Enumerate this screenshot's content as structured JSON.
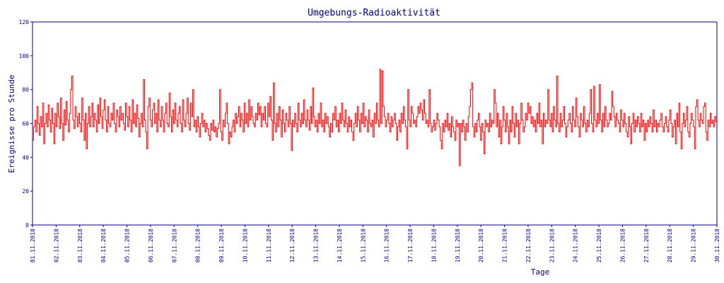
{
  "chart_data": {
    "type": "line",
    "title": "Umgebungs-Radioaktivität",
    "xlabel": "Tage",
    "ylabel": "Ereignisse pro Stunde",
    "ylim": [
      0,
      120
    ],
    "yticks": [
      0,
      20,
      40,
      60,
      80,
      100,
      120
    ],
    "xticks": [
      "01.11.2018",
      "02.11.2018",
      "03.11.2018",
      "04.11.2018",
      "05.11.2018",
      "06.11.2018",
      "07.11.2018",
      "08.11.2018",
      "09.11.2018",
      "10.11.2018",
      "11.11.2018",
      "12.11.2018",
      "13.11.2018",
      "14.11.2018",
      "15.11.2018",
      "16.11.2018",
      "17.11.2018",
      "18.11.2018",
      "19.11.2018",
      "20.11.2018",
      "21.11.2018",
      "22.11.2018",
      "23.11.2018",
      "24.11.2018",
      "25.11.2018",
      "26.11.2018",
      "27.11.2018",
      "28.11.2018",
      "29.11.2018",
      "30.11.2018"
    ],
    "grid": false,
    "line_color": "#ff0000",
    "axis_color": "#000080",
    "series": [
      {
        "sampling": "hourly",
        "values": [
          50,
          58,
          62,
          55,
          70,
          60,
          53,
          64,
          58,
          72,
          48,
          60,
          66,
          58,
          71,
          62,
          55,
          69,
          60,
          48,
          66,
          58,
          72,
          64,
          57,
          75,
          60,
          50,
          68,
          59,
          73,
          62,
          55,
          66,
          80,
          88,
          62,
          57,
          70,
          64,
          58,
          66,
          60,
          55,
          75,
          62,
          50,
          66,
          45,
          60,
          70,
          58,
          64,
          72,
          58,
          66,
          62,
          55,
          71,
          60,
          75,
          64,
          57,
          68,
          74,
          62,
          55,
          70,
          60,
          58,
          66,
          62,
          72,
          60,
          55,
          68,
          64,
          58,
          70,
          62,
          66,
          60,
          56,
          72,
          64,
          58,
          70,
          62,
          55,
          74,
          60,
          66,
          58,
          71,
          63,
          52,
          60,
          66,
          58,
          86,
          62,
          55,
          45,
          70,
          75,
          62,
          58,
          68,
          72,
          60,
          66,
          55,
          74,
          62,
          58,
          70,
          62,
          55,
          66,
          72,
          60,
          58,
          78,
          64,
          55,
          68,
          60,
          72,
          62,
          58,
          66,
          70,
          60,
          55,
          74,
          62,
          58,
          66,
          75,
          60,
          56,
          72,
          64,
          80,
          58,
          62,
          55,
          64,
          58,
          52,
          60,
          66,
          58,
          62,
          55,
          60,
          57,
          53,
          50,
          60,
          56,
          62,
          55,
          58,
          52,
          57,
          60,
          80,
          55,
          50,
          62,
          58,
          66,
          72,
          60,
          48,
          55,
          52,
          58,
          62,
          55,
          66,
          60,
          64,
          70,
          58,
          66,
          62,
          55,
          72,
          60,
          66,
          58,
          74,
          62,
          70,
          64,
          60,
          58,
          66,
          62,
          72,
          65,
          70,
          58,
          66,
          62,
          70,
          60,
          58,
          72,
          64,
          76,
          62,
          50,
          84,
          60,
          55,
          66,
          58,
          70,
          62,
          52,
          68,
          60,
          55,
          66,
          62,
          58,
          70,
          60,
          44,
          62,
          58,
          66,
          60,
          55,
          72,
          62,
          58,
          66,
          60,
          74,
          62,
          58,
          68,
          62,
          56,
          70,
          60,
          81,
          64,
          58,
          62,
          55,
          66,
          60,
          72,
          58,
          62,
          55,
          66,
          60,
          64,
          58,
          52,
          60,
          55,
          66,
          62,
          70,
          58,
          62,
          55,
          66,
          60,
          72,
          62,
          58,
          68,
          60,
          55,
          64,
          58,
          62,
          55,
          50,
          60,
          66,
          58,
          70,
          62,
          55,
          66,
          60,
          72,
          58,
          64,
          62,
          55,
          68,
          60,
          58,
          62,
          52,
          66,
          60,
          72,
          62,
          58,
          92,
          60,
          91,
          70,
          64,
          58,
          62,
          66,
          60,
          55,
          64,
          58,
          62,
          66,
          60,
          50,
          58,
          62,
          55,
          66,
          60,
          70,
          62,
          58,
          45,
          80,
          62,
          58,
          70,
          66,
          60,
          62,
          58,
          64,
          70,
          66,
          72,
          68,
          62,
          74,
          66,
          60,
          62,
          58,
          80,
          60,
          55,
          58,
          62,
          56,
          60,
          66,
          62,
          58,
          50,
          45,
          60,
          55,
          62,
          58,
          66,
          56,
          60,
          52,
          64,
          58,
          55,
          50,
          62,
          58,
          60,
          35,
          60,
          55,
          62,
          58,
          50,
          60,
          55,
          64,
          70,
          80,
          84,
          58,
          52,
          60,
          55,
          62,
          66,
          58,
          50,
          60,
          55,
          42,
          62,
          58,
          60,
          55,
          66,
          58,
          62,
          60,
          80,
          72,
          58,
          66,
          52,
          62,
          48,
          58,
          70,
          62,
          55,
          66,
          58,
          48,
          62,
          55,
          70,
          60,
          52,
          66,
          58,
          62,
          48,
          60,
          72,
          62,
          55,
          58,
          66,
          62,
          72,
          66,
          70,
          60,
          64,
          58,
          62,
          55,
          66,
          60,
          72,
          58,
          62,
          48,
          66,
          58,
          62,
          60,
          80,
          62,
          58,
          66,
          55,
          70,
          62,
          58,
          88,
          60,
          55,
          66,
          58,
          62,
          70,
          60,
          52,
          58,
          62,
          66,
          60,
          55,
          70,
          62,
          58,
          75,
          64,
          58,
          52,
          66,
          62,
          58,
          70,
          60,
          55,
          62,
          58,
          66,
          80,
          60,
          55,
          82,
          62,
          58,
          66,
          60,
          83,
          62,
          55,
          66,
          58,
          70,
          62,
          58,
          60,
          66,
          62,
          79,
          70,
          64,
          58,
          66,
          62,
          60,
          55,
          68,
          62,
          58,
          66,
          60,
          55,
          52,
          64,
          58,
          48,
          60,
          66,
          55,
          62,
          58,
          64,
          60,
          55,
          66,
          58,
          62,
          50,
          60,
          55,
          62,
          58,
          64,
          60,
          55,
          68,
          58,
          62,
          55,
          60,
          58,
          62,
          66,
          58,
          55,
          60,
          64,
          58,
          55,
          62,
          68,
          60,
          52,
          58,
          62,
          48,
          66,
          58,
          72,
          55,
          45,
          60,
          66,
          58,
          62,
          70,
          55,
          52,
          60,
          66,
          62,
          58,
          45,
          70,
          74,
          62,
          58,
          66,
          62,
          60,
          70,
          72,
          55,
          50,
          62,
          58,
          66,
          60,
          62,
          58,
          64,
          61
        ]
      }
    ]
  }
}
